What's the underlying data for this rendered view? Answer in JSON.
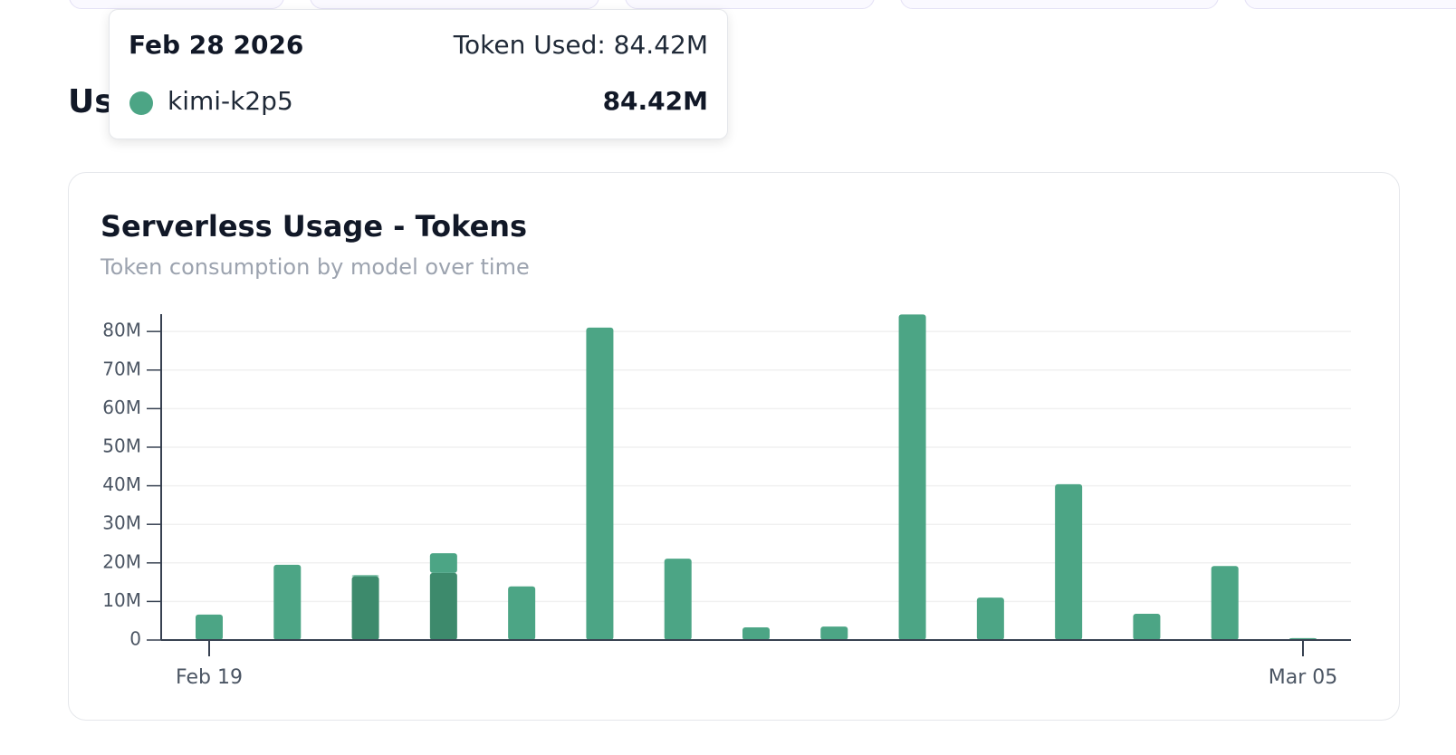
{
  "section_heading": "Us",
  "tooltip": {
    "date": "Feb 28 2026",
    "total_label": "Token Used: 84.42M",
    "value_label": "84.42M"
  },
  "chart_data": {
    "type": "bar",
    "stacked": true,
    "title": "Serverless Usage - Tokens",
    "subtitle": "Token consumption by model over time",
    "categories": [
      "Feb 19",
      null,
      null,
      null,
      null,
      null,
      null,
      null,
      null,
      null,
      null,
      null,
      null,
      null,
      "Mar 05"
    ],
    "series": [
      {
        "name": "kimi-k2p5",
        "color": "#4ca585",
        "values": [
          6.6,
          19.5,
          0.3,
          5.1,
          13.9,
          81.0,
          21.1,
          3.3,
          3.5,
          84.42,
          11.0,
          40.4,
          6.8,
          19.2,
          0.5
        ]
      },
      {
        "color": "#3d8a6c",
        "values": [
          0,
          0,
          16.5,
          17.4,
          0,
          0,
          0,
          0,
          0,
          0,
          0,
          0,
          0,
          0,
          0
        ]
      }
    ],
    "ylim": [
      0,
      84.5
    ],
    "yticks": [
      0,
      {
        "value": 10,
        "label": "10M"
      },
      {
        "value": 20,
        "label": "20M"
      },
      {
        "value": 30,
        "label": "30M"
      },
      {
        "value": 40,
        "label": "40M"
      },
      {
        "value": 50,
        "label": "50M"
      },
      {
        "value": 60,
        "label": "60M"
      },
      {
        "value": 70,
        "label": "70M"
      },
      {
        "value": 80,
        "label": "80M"
      }
    ],
    "grid": true
  }
}
